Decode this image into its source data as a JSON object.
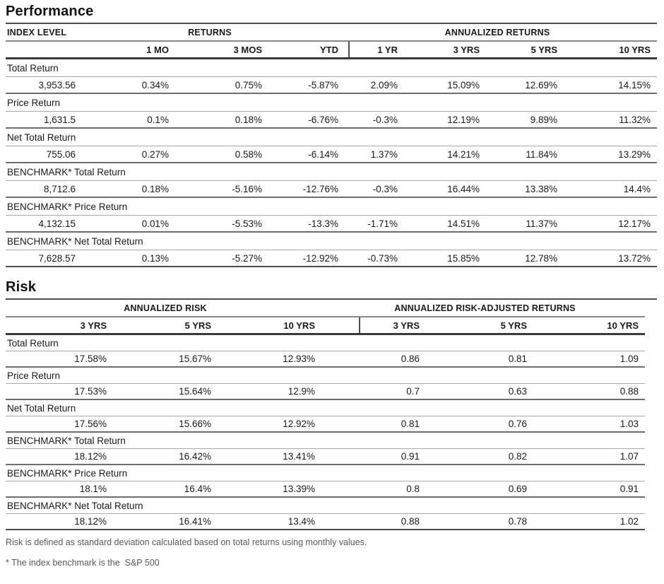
{
  "performance": {
    "title": "Performance",
    "group_headers": {
      "index_level": "INDEX LEVEL",
      "returns": "RETURNS",
      "annualized": "ANNUALIZED RETURNS"
    },
    "columns": [
      "",
      "1 MO",
      "3 MOS",
      "YTD",
      "1 YR",
      "3 YRS",
      "5 YRS",
      "10 YRS"
    ],
    "rows": [
      {
        "label": "Total Return",
        "values": [
          "3,953.56",
          "0.34%",
          "0.75%",
          "-5.87%",
          "2.09%",
          "15.09%",
          "12.69%",
          "14.15%"
        ]
      },
      {
        "label": "Price Return",
        "values": [
          "1,631.5",
          "0.1%",
          "0.18%",
          "-6.76%",
          "-0.3%",
          "12.19%",
          "9.89%",
          "11.32%"
        ]
      },
      {
        "label": "Net Total Return",
        "values": [
          "755.06",
          "0.27%",
          "0.58%",
          "-6.14%",
          "1.37%",
          "14.21%",
          "11.84%",
          "13.29%"
        ]
      },
      {
        "label": "BENCHMARK* Total Return",
        "values": [
          "8,712.6",
          "0.18%",
          "-5.16%",
          "-12.76%",
          "-0.3%",
          "16.44%",
          "13.38%",
          "14.4%"
        ]
      },
      {
        "label": "BENCHMARK* Price Return",
        "values": [
          "4,132.15",
          "0.01%",
          "-5.53%",
          "-13.3%",
          "-1.71%",
          "14.51%",
          "11.37%",
          "12.17%"
        ]
      },
      {
        "label": "BENCHMARK* Net Total Return",
        "values": [
          "7,628.57",
          "0.13%",
          "-5.27%",
          "-12.92%",
          "-0.73%",
          "15.85%",
          "12.78%",
          "13.72%"
        ]
      }
    ]
  },
  "risk": {
    "title": "Risk",
    "group_headers": {
      "annualized_risk": "ANNUALIZED RISK",
      "risk_adjusted": "ANNUALIZED RISK-ADJUSTED RETURNS"
    },
    "columns": [
      "3 YRS",
      "5 YRS",
      "10 YRS",
      "3 YRS",
      "5 YRS",
      "10 YRS"
    ],
    "rows": [
      {
        "label": "Total Return",
        "values": [
          "17.58%",
          "15.67%",
          "12.93%",
          "0.86",
          "0.81",
          "1.09"
        ]
      },
      {
        "label": "Price Return",
        "values": [
          "17.53%",
          "15.64%",
          "12.9%",
          "0.7",
          "0.63",
          "0.88"
        ]
      },
      {
        "label": "Net Total Return",
        "values": [
          "17.56%",
          "15.66%",
          "12.92%",
          "0.81",
          "0.76",
          "1.03"
        ]
      },
      {
        "label": "BENCHMARK* Total Return",
        "values": [
          "18.12%",
          "16.42%",
          "13.41%",
          "0.91",
          "0.82",
          "1.07"
        ]
      },
      {
        "label": "BENCHMARK* Price Return",
        "values": [
          "18.1%",
          "16.4%",
          "13.39%",
          "0.8",
          "0.69",
          "0.91"
        ]
      },
      {
        "label": "BENCHMARK* Net Total Return",
        "values": [
          "18.12%",
          "16.41%",
          "13.4%",
          "0.88",
          "0.78",
          "1.02"
        ]
      }
    ]
  },
  "footnotes": {
    "risk_definition": "Risk is defined as standard deviation calculated based on total returns using monthly values.",
    "benchmark": "* The index benchmark is the  S&P 500"
  },
  "colors": {
    "text": "#1a1a1a",
    "footnote_text": "#58595b",
    "line_dark": "#3a3a3c",
    "line_mid": "#6d6e71",
    "line_light": "#a7a8aa"
  }
}
